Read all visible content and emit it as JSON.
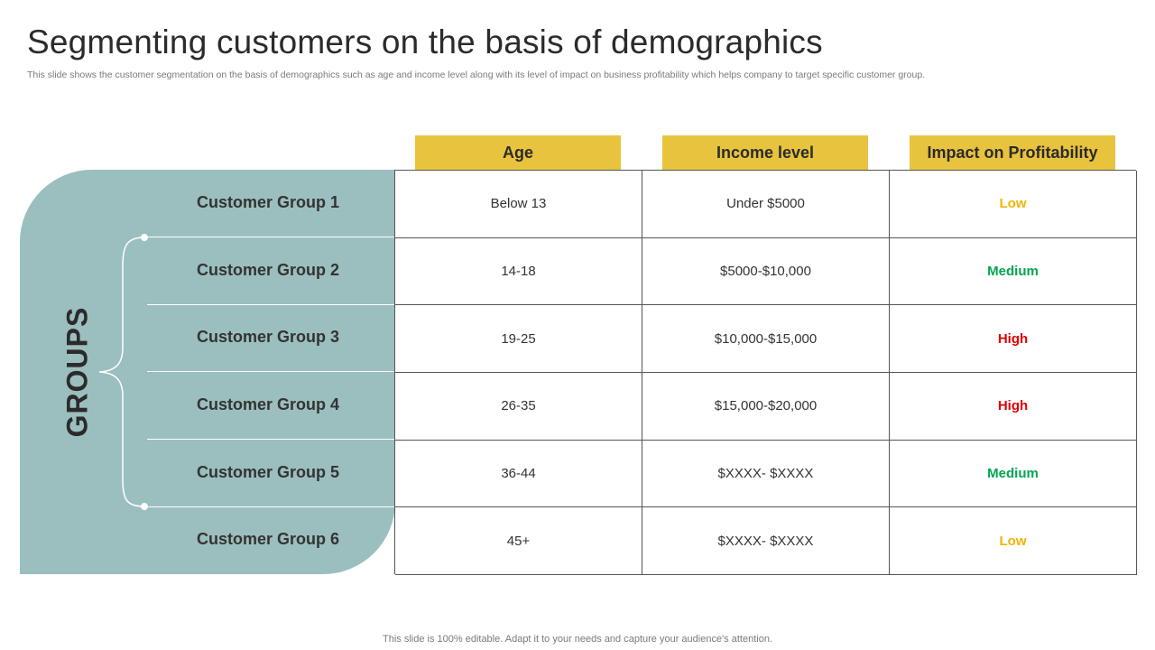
{
  "slide": {
    "title": "Segmenting customers on the basis of demographics",
    "subtitle": "This slide shows the customer segmentation on the basis of demographics such as age and income level along with its level of impact on business profitability which helps company to target specific customer group.",
    "footer": "This slide is 100% editable. Adapt it to your needs and capture your audience's attention."
  },
  "colors": {
    "panel": "#9bbfbe",
    "header": "#e8c33e",
    "low": "#f0b400",
    "medium": "#00a651",
    "high": "#e00000"
  },
  "panel": {
    "label": "GROUPS"
  },
  "table": {
    "headers": [
      "Age",
      "Income level",
      "Impact on Profitability"
    ],
    "rows": [
      {
        "group": "Customer Group 1",
        "age": "Below 13",
        "income": "Under $5000",
        "impact": "Low"
      },
      {
        "group": "Customer Group 2",
        "age": "14-18",
        "income": "$5000-$10,000",
        "impact": "Medium"
      },
      {
        "group": "Customer Group 3",
        "age": "19-25",
        "income": "$10,000-$15,000",
        "impact": "High"
      },
      {
        "group": "Customer Group 4",
        "age": "26-35",
        "income": "$15,000-$20,000",
        "impact": "High"
      },
      {
        "group": "Customer Group 5",
        "age": "36-44",
        "income": "$XXXX- $XXXX",
        "impact": "Medium"
      },
      {
        "group": "Customer Group 6",
        "age": "45+",
        "income": "$XXXX- $XXXX",
        "impact": "Low"
      }
    ]
  }
}
